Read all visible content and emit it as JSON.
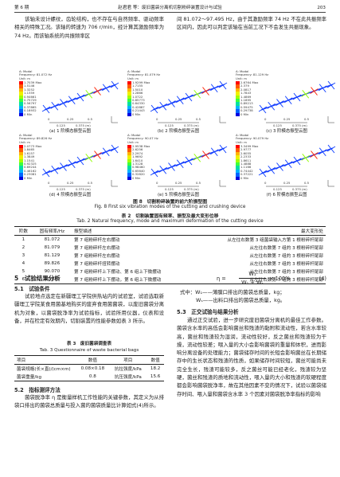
{
  "header": {
    "issue": "第 6 期",
    "running_title": "赵君君 等：废旧菌袋分离机切割粉碎装置设计与试验",
    "page": "203"
  },
  "intro": {
    "left": "该轴未设计螺纹，齿轮结构，也不存在与自然频率、驱动频率相关的特殊工况。该轴的转速为 706 r/min，经计算其激励频率为 74 Hz。而该轴系统的共振频率区",
    "right": "间 81.072～97.495 Hz，由于其激励频率 74 Hz 不在此共振频率区间内，因此可以判定该轴在当前工况下不会发生共振现象。"
  },
  "figure8": {
    "axis_labels": [
      "0",
      "0.25",
      "0.5",
      "0.125",
      "0.375 (m)"
    ],
    "panels": [
      {
        "model": "A: Modal",
        "frequency": "Frequency: 81.072 Hz",
        "unit": "Unit: m",
        "scale": [
          "1.7039 Max",
          "1.5146",
          "1.3252",
          "1.1359",
          "0.94661",
          "0.75729",
          "0.56797",
          "0.37865",
          "0.18932",
          "0 Min"
        ],
        "caption": "(a) 1 阶模态振型云图"
      },
      {
        "model": "A: Modal",
        "frequency": "Frequency: 81.079 Hz",
        "unit": "Unit: m",
        "scale": [
          "1.9299 Max",
          "1.7155",
          "1.5010",
          "1.2866",
          "1.0722",
          "0.85773",
          "0.64330",
          "0.42887",
          "0.21443",
          "0 Min"
        ],
        "caption": "(b) 2 阶模态振型云图"
      },
      {
        "model": "A: Modal",
        "frequency": "Frequency: 81.129 Hz",
        "unit": "Unit: m",
        "scale": [
          "2.6764 Max",
          "2.379",
          "2.0817",
          "1.7843",
          "1.4869",
          "1.1895",
          "0.89213",
          "0.59475",
          "0.29738",
          "0 Min"
        ],
        "caption": "(c) 3 阶模态振型云图"
      },
      {
        "model": "A: Modal",
        "frequency": "Frequency: 89.826 Hz",
        "unit": "Unit: m",
        "scale": [
          "2.0773 Max",
          "1.8465",
          "1.6157",
          "1.3849",
          "1.1541",
          "0.92325",
          "0.69244",
          "0.46162",
          "0.23081",
          "0 Min"
        ],
        "caption": "(d) 4 阶模态振型云图"
      },
      {
        "model": "A: Modal",
        "frequency": "Frequency: 90.07 Hz",
        "unit": "Unit: m",
        "scale": [
          "2.9538 Max",
          "2.6256",
          "2.2974",
          "1.9692",
          "1.6410",
          "1.3128",
          "0.98460",
          "0.65640",
          "0.32820",
          "0 Min"
        ],
        "caption": "(e) 5 阶模态振型云图"
      },
      {
        "model": "A: Modal",
        "frequency": "Frequency: 90.079 Hz",
        "unit": "Unit: m",
        "scale": [
          "3.3499 Max",
          "2.9777",
          "2.6055",
          "2.2333",
          "1.8611",
          "1.4888",
          "1.1166",
          "0.74442",
          "0.37221",
          "0 Min"
        ],
        "caption": "(f) 6 阶模态振型云图"
      }
    ],
    "caption_cn": "图 8　切割粉碎装置的前六阶振型图",
    "caption_en": "Fig. 8 First six vibration modes of the cutting and crushing device"
  },
  "table2": {
    "caption_cn": "表 2　切割装置固有频率、振型及最大变形位移",
    "caption_en": "Tab. 2 Natural frequency, mode and maximum deformation of the cutting device",
    "header": [
      "阶数",
      "固有频率/Hz",
      "振型描述",
      "最大变形处"
    ],
    "rows": [
      [
        "1",
        "81.072",
        "第 7 组粉碎杆左右摆动",
        "从左往右数第 3 组菌袋输入方第 1 根粉碎杆尾部"
      ],
      [
        "2",
        "81.079",
        "第 7 组粉碎杆左右摆动",
        "从左往右数第 7 组的 3 根粉碎杆尾部"
      ],
      [
        "3",
        "81.129",
        "第 7 组粉碎杆左右摆动",
        "从左往右数第 7 组的 3 根粉碎杆尾部"
      ],
      [
        "4",
        "89.826",
        "第 7 组粉碎杆扭转摆动",
        "从左往右数第 7 组的 3 根粉碎杆尾部"
      ],
      [
        "5",
        "90.070",
        "第 7 组粉碎杆上下摆动、第 6 组上下微摆动",
        "从左往右数第 7 组的 3 根粉碎杆尾部"
      ],
      [
        "6",
        "90.079",
        "第 7 组粉碎杆上下摆动，第 6 组上下微摆动",
        "从左往右数第 7 组的 3 根粉碎杆尾部"
      ]
    ]
  },
  "section5": {
    "title": "5　试验结果分析",
    "s51_title": "5.1　试验条件",
    "s51_text": "试验地点选定在新疆理工学院供热站内的试验室，试验选取新疆理工学院某食用菌基地购买的废弃食用菌菌袋，以废旧菌袋分离机为对象，以菌袋脱净率为试验指标，试验所用仪器，仪表和设备，并在检定有效期内，切割装置的性能参数如表 3 所示。",
    "table3": {
      "caption_cn": "表 3　废旧菌袋调查表",
      "caption_en": "Tab. 3 Questionnaire of waste bacterial bags",
      "header": [
        "项目",
        "数值",
        "项目",
        "数值"
      ],
      "rows": [
        [
          "菌袋规格(长×直)/(cm×m)",
          "0.08×0.18",
          "抗拉强度/kPa",
          "18.2"
        ],
        [
          "菌袋重量/kg",
          "0.8",
          "抗压强度/kPa",
          "15.6"
        ]
      ]
    },
    "s52_title": "5.2　指标测评方法",
    "s52_text": "菌袋脱净率 η 是衡量样机工作性能的关键参数，其定义为从排袋口排出的菌袋总质量与投入菌的菌袋质量比计算如式(4)所示。",
    "formula": {
      "lhs": "η =",
      "numerator": "W₁",
      "denominator": "W₁ + Wₛ",
      "suffix": "× 100%",
      "number": "(4)"
    },
    "where": [
      "式中：W₁——薄膜口排出的菌袋总质量，kg；",
      "Wₛ——出料口排出的菌袋总质量，kg。"
    ],
    "s53_title": "5.3　正交试验与结果分析",
    "s53_text": "通过正交试验，进一步研究废旧菌袋分离机的最佳工作参数。菌袋含水率的高低会影响菌丝和残渣的黏附和流动性，若含水率较高，菌丝和残渣较为湿润，流动性较好，反之菌丝和残渣较为干燥，流动性较差；喂入量的大小会影响菌袋的重量和体积，进而影响分离设备的处理能力；菌袋储存时间的长短会影响菌丝在长期储存中的生长状态和残渣的性质，如果储存时间较短，菌丝可能尚未完全生长，残渣可能较多，反之菌丝可能已经老化，残渣较为坚硬，菌丝和残渣的质地和流动性，喂入量的大小和残渣的软硬程度都会影响菌袋脱净率，故在其他因素不变的情况下，试验以菌袋储存时间、喂入量和菌袋含水率 3 个因素对菌袋脱净率指标的影响"
  }
}
